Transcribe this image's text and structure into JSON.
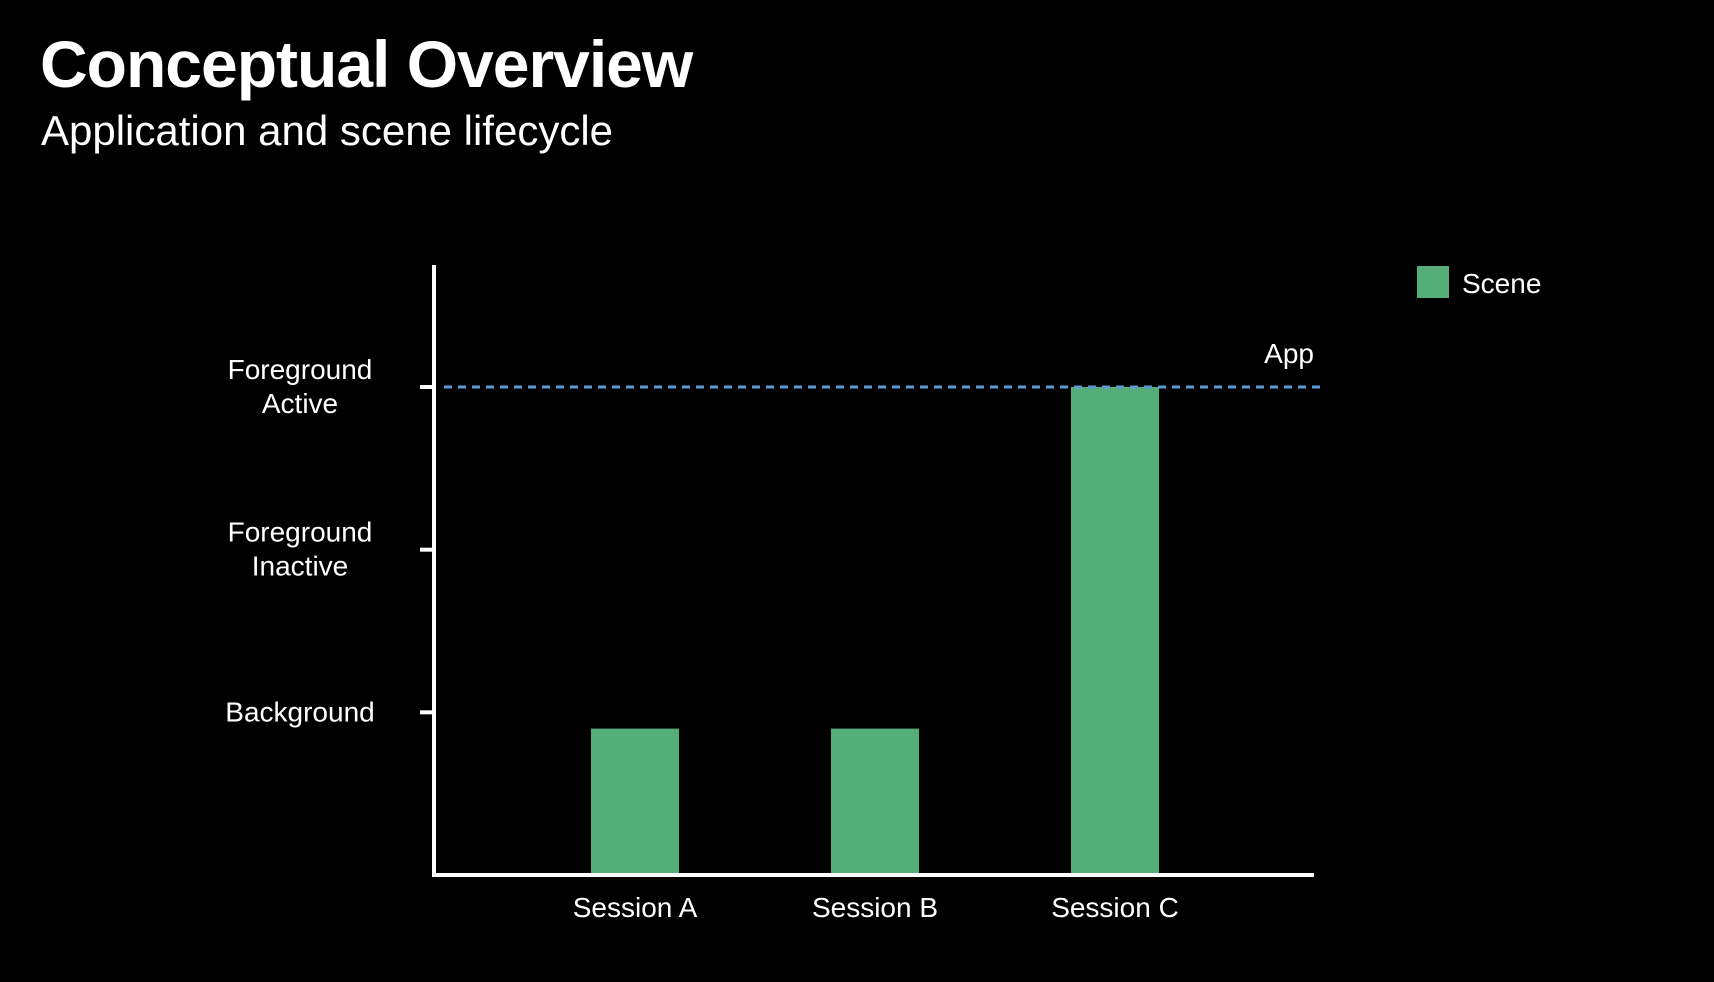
{
  "slide": {
    "title": "Conceptual Overview",
    "subtitle": "Application and scene lifecycle"
  },
  "chart_data": {
    "type": "bar",
    "categories": [
      "Session A",
      "Session B",
      "Session C"
    ],
    "series": [
      {
        "name": "Scene",
        "values": [
          0.9,
          0.9,
          3
        ],
        "color": "#55ad7a"
      }
    ],
    "y_ticks": [
      {
        "value": 1,
        "label": [
          "Background"
        ]
      },
      {
        "value": 2,
        "label": [
          "Foreground",
          "Inactive"
        ]
      },
      {
        "value": 3,
        "label": [
          "Foreground",
          "Active"
        ]
      }
    ],
    "ylim": [
      0,
      3.75
    ],
    "reference_line": {
      "name": "App",
      "value": 3,
      "style": "dashed",
      "color": "#5b9bd5"
    },
    "legend_position": "top-right",
    "grid": false,
    "axis_color": "#ffffff",
    "background": "#000000"
  }
}
